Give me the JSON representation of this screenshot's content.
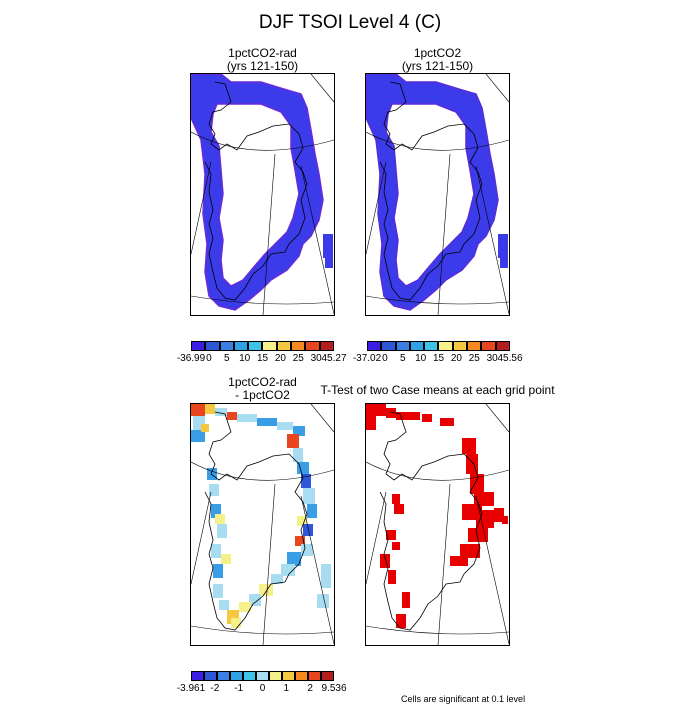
{
  "title": "DJF TSOI Level 4 (C)",
  "panels": [
    {
      "title_line1": "1pctCO2-rad",
      "title_line2": "(yrs 121-150)"
    },
    {
      "title_line1": "1pctCO2",
      "title_line2": "(yrs 121-150)"
    },
    {
      "title_line1": "1pctCO2-rad",
      "title_line2": "- 1pctCO2"
    },
    {
      "title_line1": "T-Test of two Case means at each grid point",
      "title_line2": ""
    }
  ],
  "colorbars": [
    {
      "labels": [
        "-36.99",
        "0",
        "5",
        "10",
        "15",
        "20",
        "25",
        "30",
        "45.27"
      ],
      "colors": [
        "#3b1ee6",
        "#2e56d8",
        "#3a7ee6",
        "#2fa2e6",
        "#3cc3e8",
        "#f5f08a",
        "#f5c842",
        "#f58a1e",
        "#e8461e",
        "#b41e1e"
      ]
    },
    {
      "labels": [
        "-37.02",
        "0",
        "5",
        "10",
        "15",
        "20",
        "25",
        "30",
        "45.56"
      ],
      "colors": [
        "#3b1ee6",
        "#2e56d8",
        "#3a7ee6",
        "#2fa2e6",
        "#3cc3e8",
        "#f5f08a",
        "#f5c842",
        "#f58a1e",
        "#e8461e",
        "#b41e1e"
      ]
    },
    {
      "labels": [
        "-3.961",
        "-2",
        "-1",
        "0",
        "1",
        "2",
        "9.536"
      ],
      "colors": [
        "#3b1ee6",
        "#2e56d8",
        "#3a7ee6",
        "#2fa2e6",
        "#3cc3e8",
        "#a8dcf0",
        "#f5f08a",
        "#f5c842",
        "#f58a1e",
        "#e8461e",
        "#b41e1e"
      ]
    }
  ],
  "footnote": "Cells are significant at 0.1 level",
  "colors": {
    "p1": "#3b3bea",
    "p1_edge": "#6a2bd8",
    "p2": "#3b3bea",
    "p2_edge": "#5a2bd8",
    "p4": "#e80000"
  }
}
